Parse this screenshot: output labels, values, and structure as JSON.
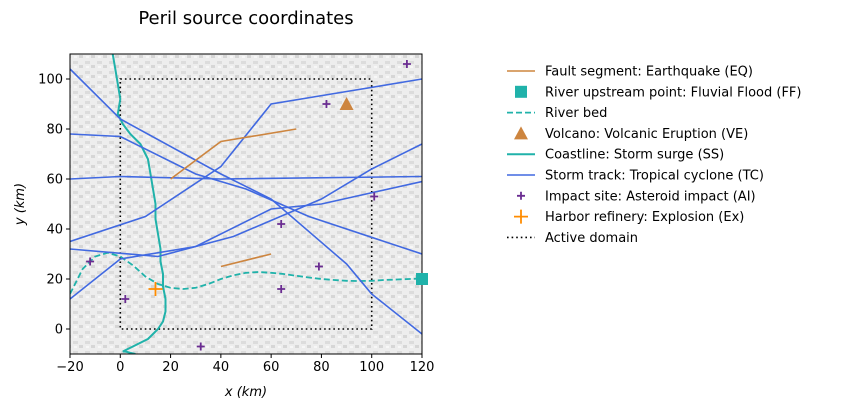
{
  "chart_data": {
    "type": "line",
    "title": "Peril source coordinates",
    "xlabel": "x (km)",
    "ylabel": "y (km)",
    "xlim": [
      -20,
      120
    ],
    "ylim": [
      -10,
      110
    ],
    "xticks": [
      -20,
      0,
      20,
      40,
      60,
      80,
      100,
      120
    ],
    "yticks": [
      0,
      20,
      40,
      60,
      80,
      100
    ],
    "grid": false,
    "legend_position": "outside-right",
    "colors": {
      "fault": "#cd853f",
      "fluvial": "#20b2aa",
      "river": "#20b2aa",
      "volcano": "#cd853f",
      "coast": "#20b2aa",
      "storm": "#4169e1",
      "asteroid": "#6a2c91",
      "explosion": "#ff8c00",
      "domain": "#000000",
      "terrain": "#cfcfcf"
    },
    "legend": [
      {
        "key": "fault",
        "label": "Fault segment: Earthquake (EQ)"
      },
      {
        "key": "fluvial",
        "label": "River upstream point: Fluvial Flood (FF)"
      },
      {
        "key": "river",
        "label": "River bed"
      },
      {
        "key": "volcano",
        "label": "Volcano: Volcanic Eruption (VE)"
      },
      {
        "key": "coast",
        "label": "Coastline: Storm surge (SS)"
      },
      {
        "key": "storm",
        "label": "Storm track: Tropical cyclone (TC)"
      },
      {
        "key": "asteroid",
        "label": "Impact site: Asteroid impact (AI)"
      },
      {
        "key": "explosion",
        "label": "Harbor refinery: Explosion (Ex)"
      },
      {
        "key": "domain",
        "label": "Active domain"
      }
    ],
    "fault_segments": [
      {
        "x": [
          20,
          40,
          70
        ],
        "y": [
          60,
          75,
          80
        ]
      },
      {
        "x": [
          40,
          60
        ],
        "y": [
          25,
          30
        ]
      }
    ],
    "river_upstream_point": {
      "x": 120,
      "y": 20
    },
    "river_bed": {
      "x": [
        -20,
        -15,
        -10,
        -5,
        0,
        5,
        10,
        15,
        20,
        25,
        30,
        35,
        40,
        45,
        50,
        55,
        60,
        65,
        70,
        75,
        80,
        85,
        90,
        95,
        100,
        105,
        110,
        115,
        120
      ],
      "y": [
        14,
        24,
        29,
        30.5,
        29,
        25.5,
        21,
        18,
        16.5,
        16,
        16.5,
        18,
        20,
        21.5,
        22.5,
        22.8,
        22.5,
        22,
        21.3,
        20.6,
        20,
        19.6,
        19.3,
        19.2,
        19.3,
        19.6,
        19.8,
        20,
        20.2
      ]
    },
    "volcano": {
      "x": 90,
      "y": 90
    },
    "coastline": {
      "x": [
        -3,
        -2,
        -1,
        0,
        -1,
        1,
        4,
        8,
        11,
        12,
        13,
        14,
        14,
        15,
        16,
        16,
        17,
        17,
        18,
        18,
        17,
        15,
        13,
        11,
        9,
        7,
        5,
        3,
        1,
        2,
        4,
        6
      ],
      "y": [
        110,
        104,
        98,
        92,
        86,
        82,
        78,
        74,
        68,
        62,
        56,
        50,
        44,
        38,
        32,
        27,
        22,
        17,
        12,
        7,
        3,
        0,
        -2,
        -4,
        -5,
        -6,
        -7,
        -8,
        -9,
        -9,
        -9.5,
        -10
      ]
    },
    "storm_tracks": [
      {
        "x": [
          -20,
          0,
          40,
          120
        ],
        "y": [
          60,
          61,
          60,
          61
        ]
      },
      {
        "x": [
          -20,
          15,
          45,
          80,
          100,
          120
        ],
        "y": [
          32,
          29,
          37,
          52,
          64,
          74
        ]
      },
      {
        "x": [
          -20,
          0,
          30,
          60,
          80,
          120
        ],
        "y": [
          12,
          28,
          33,
          48,
          50,
          59
        ]
      },
      {
        "x": [
          -20,
          0,
          40,
          60,
          90,
          100,
          120
        ],
        "y": [
          104,
          84,
          62,
          52,
          26,
          14,
          -2
        ]
      },
      {
        "x": [
          -20,
          0,
          30,
          50,
          75,
          120
        ],
        "y": [
          78,
          77,
          62,
          56,
          45,
          30
        ]
      },
      {
        "x": [
          -20,
          10,
          40,
          60,
          90,
          120
        ],
        "y": [
          35,
          45,
          65,
          90,
          95,
          100
        ]
      }
    ],
    "impact_sites": {
      "x": [
        -12,
        2,
        32,
        64,
        64,
        79,
        82,
        101,
        114
      ],
      "y": [
        27,
        12,
        -7,
        42,
        16,
        25,
        90,
        53,
        106
      ]
    },
    "explosion": {
      "x": 14,
      "y": 16
    },
    "active_domain": {
      "x": [
        0,
        100
      ],
      "y": [
        0,
        100
      ]
    }
  }
}
